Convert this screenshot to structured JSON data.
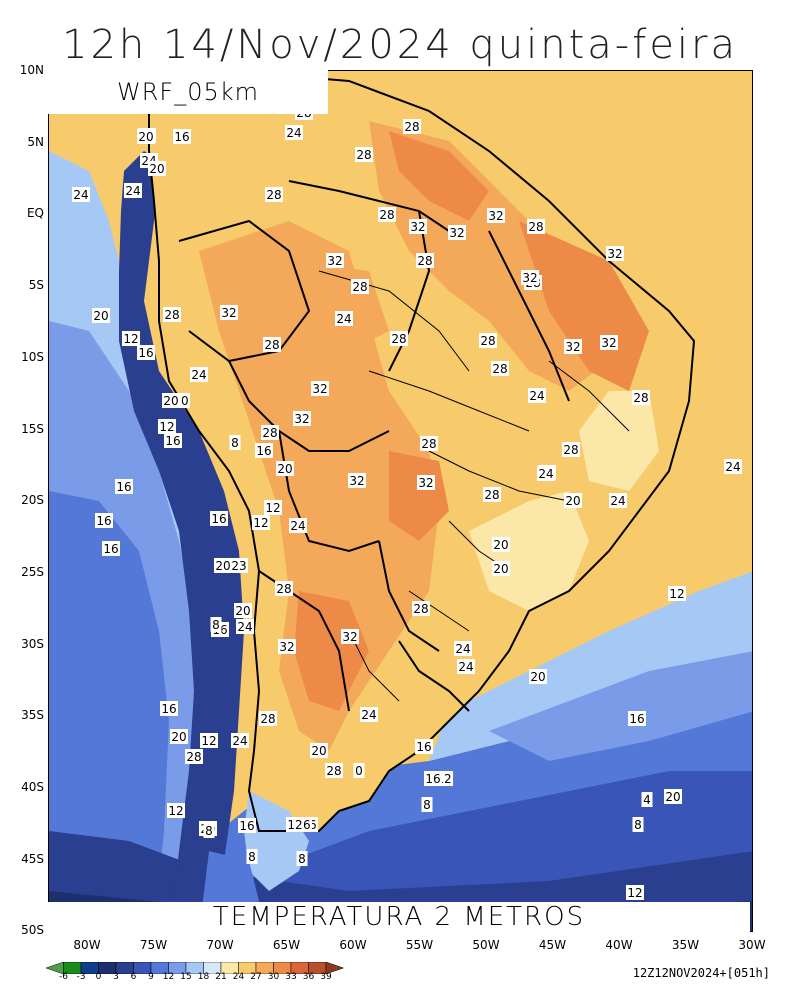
{
  "title": "12h 14/Nov/2024 quinta-feira",
  "model": "WRF_05km",
  "variable_title": "TEMPERATURA 2 METROS",
  "timestamp": "12Z12NOV2024+[051h]",
  "lat_labels": [
    "10N",
    "5N",
    "EQ",
    "5S",
    "10S",
    "15S",
    "20S",
    "25S",
    "30S",
    "35S",
    "40S",
    "45S",
    "50S"
  ],
  "lon_labels": [
    "80W",
    "75W",
    "70W",
    "65W",
    "60W",
    "55W",
    "50W",
    "45W",
    "40W",
    "35W",
    "30W"
  ],
  "colorbar": {
    "ticks": [
      "-6",
      "-3",
      "0",
      "3",
      "6",
      "9",
      "12",
      "15",
      "18",
      "21",
      "24",
      "27",
      "30",
      "33",
      "36",
      "39"
    ],
    "colors": [
      "#4aa04a",
      "#1a8a1a",
      "#0f3c8c",
      "#1e2f6e",
      "#2a3f8f",
      "#3a55b8",
      "#5478d8",
      "#7a9be8",
      "#a6c8f4",
      "#d4e8fa",
      "#fbe7a8",
      "#f7cb6b",
      "#f4a95a",
      "#ee8a48",
      "#d9663a",
      "#b8502c",
      "#8c3c1e"
    ]
  },
  "contour_labels": [
    {
      "text": "28",
      "id": "c1"
    },
    {
      "text": "16",
      "id": "c2"
    },
    {
      "text": "20",
      "id": "c3"
    },
    {
      "text": "16",
      "id": "c4"
    },
    {
      "text": "24",
      "id": "c5"
    },
    {
      "text": "28",
      "id": "c6"
    },
    {
      "text": "24",
      "id": "c7"
    },
    {
      "text": "20",
      "id": "c8"
    },
    {
      "text": "28",
      "id": "c9"
    },
    {
      "text": "24",
      "id": "c10"
    },
    {
      "text": "24",
      "id": "c11"
    },
    {
      "text": "28",
      "id": "c12"
    },
    {
      "text": "28",
      "id": "c13"
    },
    {
      "text": "32",
      "id": "c14"
    },
    {
      "text": "32",
      "id": "c15"
    },
    {
      "text": "28",
      "id": "c16"
    },
    {
      "text": "32",
      "id": "c17"
    },
    {
      "text": "32",
      "id": "c18"
    },
    {
      "text": "28",
      "id": "c19"
    },
    {
      "text": "32",
      "id": "c20"
    },
    {
      "text": "28",
      "id": "c21"
    },
    {
      "text": "28",
      "id": "c22"
    },
    {
      "text": "32",
      "id": "c23"
    },
    {
      "text": "28",
      "id": "c24"
    },
    {
      "text": "24",
      "id": "c25"
    },
    {
      "text": "32",
      "id": "c26"
    },
    {
      "text": "20",
      "id": "c27"
    },
    {
      "text": "28",
      "id": "c28"
    },
    {
      "text": "28",
      "id": "c29"
    },
    {
      "text": "28",
      "id": "c30"
    },
    {
      "text": "32",
      "id": "c31"
    },
    {
      "text": "32",
      "id": "c32"
    },
    {
      "text": "12",
      "id": "c33"
    },
    {
      "text": "16",
      "id": "c34"
    },
    {
      "text": "28",
      "id": "c35"
    },
    {
      "text": "24",
      "id": "c36"
    },
    {
      "text": "32",
      "id": "c37"
    },
    {
      "text": "20",
      "id": "c38"
    },
    {
      "text": "20",
      "id": "c39"
    },
    {
      "text": "12",
      "id": "c40"
    },
    {
      "text": "16",
      "id": "c41"
    },
    {
      "text": "8",
      "id": "c42"
    },
    {
      "text": "28",
      "id": "c43"
    },
    {
      "text": "32",
      "id": "c44"
    },
    {
      "text": "28",
      "id": "c45"
    },
    {
      "text": "28",
      "id": "c46"
    },
    {
      "text": "16",
      "id": "c47"
    },
    {
      "text": "24",
      "id": "c48"
    },
    {
      "text": "28",
      "id": "c49"
    },
    {
      "text": "24",
      "id": "c50"
    },
    {
      "text": "16",
      "id": "c51"
    },
    {
      "text": "20",
      "id": "c52"
    },
    {
      "text": "24",
      "id": "c53"
    },
    {
      "text": "32",
      "id": "c54"
    },
    {
      "text": "32",
      "id": "c55"
    },
    {
      "text": "28",
      "id": "c56"
    },
    {
      "text": "24",
      "id": "c57"
    },
    {
      "text": "20",
      "id": "c58"
    },
    {
      "text": "24",
      "id": "c59"
    },
    {
      "text": "16",
      "id": "c60"
    },
    {
      "text": "12",
      "id": "c61"
    },
    {
      "text": "12",
      "id": "c62"
    },
    {
      "text": "24",
      "id": "c63"
    },
    {
      "text": "16",
      "id": "c64"
    },
    {
      "text": "20",
      "id": "c65"
    },
    {
      "text": "16",
      "id": "c66"
    },
    {
      "text": "20",
      "id": "c67"
    },
    {
      "text": "23",
      "id": "c68"
    },
    {
      "text": "28",
      "id": "c69"
    },
    {
      "text": "24",
      "id": "c70"
    },
    {
      "text": "20",
      "id": "c71"
    },
    {
      "text": "16",
      "id": "c72"
    },
    {
      "text": "8",
      "id": "c73"
    },
    {
      "text": "24",
      "id": "c74"
    },
    {
      "text": "20",
      "id": "c75"
    },
    {
      "text": "32",
      "id": "c76"
    },
    {
      "text": "32",
      "id": "c77"
    },
    {
      "text": "28",
      "id": "c78"
    },
    {
      "text": "24",
      "id": "c79"
    },
    {
      "text": "24",
      "id": "c80"
    },
    {
      "text": "20",
      "id": "c81"
    },
    {
      "text": "20",
      "id": "c82"
    },
    {
      "text": "12",
      "id": "c83"
    },
    {
      "text": "16",
      "id": "c84"
    },
    {
      "text": "20",
      "id": "c85"
    },
    {
      "text": "28",
      "id": "c86"
    },
    {
      "text": "16",
      "id": "c87"
    },
    {
      "text": "28",
      "id": "c88"
    },
    {
      "text": "16",
      "id": "c89"
    },
    {
      "text": "12",
      "id": "c90"
    },
    {
      "text": "24",
      "id": "c91"
    },
    {
      "text": "28",
      "id": "c92"
    },
    {
      "text": "0",
      "id": "c93"
    },
    {
      "text": "12",
      "id": "c94"
    },
    {
      "text": "8",
      "id": "c95"
    },
    {
      "text": "16",
      "id": "c96"
    },
    {
      "text": "12",
      "id": "c97"
    },
    {
      "text": "20",
      "id": "c98"
    },
    {
      "text": "16",
      "id": "c99"
    },
    {
      "text": "16",
      "id": "c100"
    },
    {
      "text": "12",
      "id": "c101"
    },
    {
      "text": "8",
      "id": "c102"
    },
    {
      "text": "8",
      "id": "c103"
    },
    {
      "text": "8",
      "id": "c104"
    },
    {
      "text": "12",
      "id": "c105"
    },
    {
      "text": "8",
      "id": "c106"
    },
    {
      "text": "4",
      "id": "c107"
    },
    {
      "text": "20",
      "id": "c108"
    },
    {
      "text": "16",
      "id": "c109"
    }
  ]
}
